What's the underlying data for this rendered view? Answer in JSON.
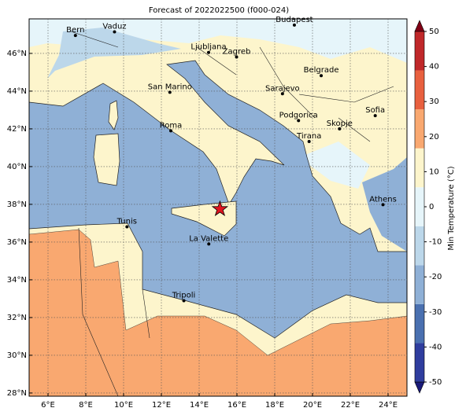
{
  "map": {
    "title": "Forecast of 2022022500 (f000-024)",
    "xlim": [
      5,
      25
    ],
    "ylim": [
      27.83,
      47.83
    ],
    "xticks": [
      {
        "value": 6,
        "label": "6°E"
      },
      {
        "value": 8,
        "label": "8°E"
      },
      {
        "value": 10,
        "label": "10°E"
      },
      {
        "value": 12,
        "label": "12°E"
      },
      {
        "value": 14,
        "label": "14°E"
      },
      {
        "value": 16,
        "label": "16°E"
      },
      {
        "value": 18,
        "label": "18°E"
      },
      {
        "value": 20,
        "label": "20°E"
      },
      {
        "value": 22,
        "label": "22°E"
      },
      {
        "value": 24,
        "label": "24°E"
      }
    ],
    "yticks": [
      {
        "value": 28,
        "label": "28°N"
      },
      {
        "value": 30,
        "label": "30°N"
      },
      {
        "value": 32,
        "label": "32°N"
      },
      {
        "value": 34,
        "label": "34°N"
      },
      {
        "value": 36,
        "label": "36°N"
      },
      {
        "value": 38,
        "label": "38°N"
      },
      {
        "value": 40,
        "label": "40°N"
      },
      {
        "value": 42,
        "label": "42°N"
      },
      {
        "value": 44,
        "label": "44°N"
      },
      {
        "value": 46,
        "label": "46°N"
      }
    ],
    "grid": true,
    "cities": [
      {
        "name": "Bern",
        "lon": 7.45,
        "lat": 46.95
      },
      {
        "name": "Vaduz",
        "lon": 9.52,
        "lat": 47.14
      },
      {
        "name": "Budapest",
        "lon": 19.04,
        "lat": 47.5
      },
      {
        "name": "Ljubljana",
        "lon": 14.5,
        "lat": 46.05
      },
      {
        "name": "Zagreb",
        "lon": 15.98,
        "lat": 45.81
      },
      {
        "name": "Belgrade",
        "lon": 20.46,
        "lat": 44.82
      },
      {
        "name": "San Marino",
        "lon": 12.45,
        "lat": 43.94
      },
      {
        "name": "Sarajevo",
        "lon": 18.41,
        "lat": 43.86
      },
      {
        "name": "Sofia",
        "lon": 23.32,
        "lat": 42.7
      },
      {
        "name": "Roma",
        "lon": 12.5,
        "lat": 41.9
      },
      {
        "name": "Podgorica",
        "lon": 19.26,
        "lat": 42.44
      },
      {
        "name": "Skopje",
        "lon": 21.43,
        "lat": 42.0
      },
      {
        "name": "Tirana",
        "lon": 19.82,
        "lat": 41.33
      },
      {
        "name": "Athens",
        "lon": 23.73,
        "lat": 37.98
      },
      {
        "name": "Tunis",
        "lon": 10.18,
        "lat": 36.81
      },
      {
        "name": "La Valette",
        "lon": 14.51,
        "lat": 35.9
      },
      {
        "name": "Tripoli",
        "lon": 13.19,
        "lat": 32.89
      }
    ],
    "marker": {
      "lon": 15.1,
      "lat": 37.75,
      "color": "#e0141e"
    }
  },
  "colorbar": {
    "label": "Min Temperature (°C)",
    "lim": [
      -50,
      50
    ],
    "ticks": [
      -50,
      -40,
      -30,
      -20,
      -10,
      0,
      10,
      20,
      30,
      40,
      50
    ],
    "colors": [
      "#1a1a7a",
      "#2f3d9e",
      "#4a70b0",
      "#8fb0d6",
      "#bcd7ea",
      "#e6f5fa",
      "#fdf5cc",
      "#f9a870",
      "#e8603f",
      "#c0282a",
      "#800015"
    ]
  }
}
